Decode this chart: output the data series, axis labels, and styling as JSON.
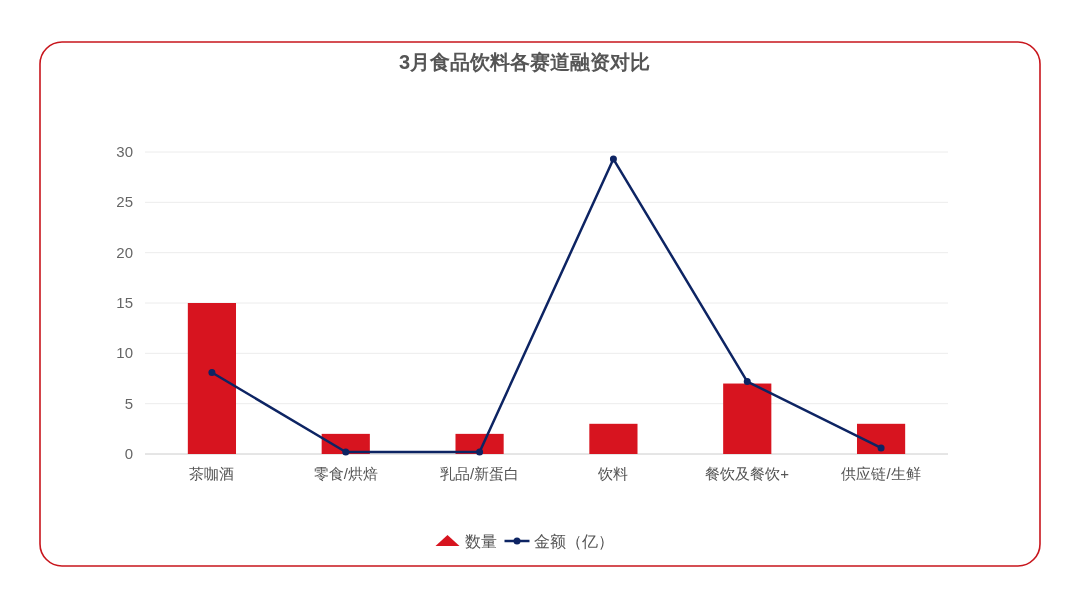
{
  "chart_data": {
    "type": "bar",
    "title": "3月食品饮料各赛道融资对比",
    "categories": [
      "茶咖酒",
      "零食/烘焙",
      "乳品/新蛋白",
      "饮料",
      "餐饮及餐饮+",
      "供应链/生鲜"
    ],
    "series": [
      {
        "name": "数量",
        "color": "#d7141f",
        "values": [
          15,
          2,
          2,
          3,
          7,
          3
        ]
      },
      {
        "name": "金额（亿）",
        "type": "line",
        "color": "#0d2463",
        "values": [
          8.1,
          0.2,
          0.2,
          29.3,
          7.2,
          0.6
        ]
      }
    ],
    "ylim": [
      0,
      30
    ],
    "yticks": [
      0,
      5,
      10,
      15,
      20,
      25,
      30
    ],
    "grid": "y",
    "legend": "bottom",
    "marker": "circle"
  }
}
